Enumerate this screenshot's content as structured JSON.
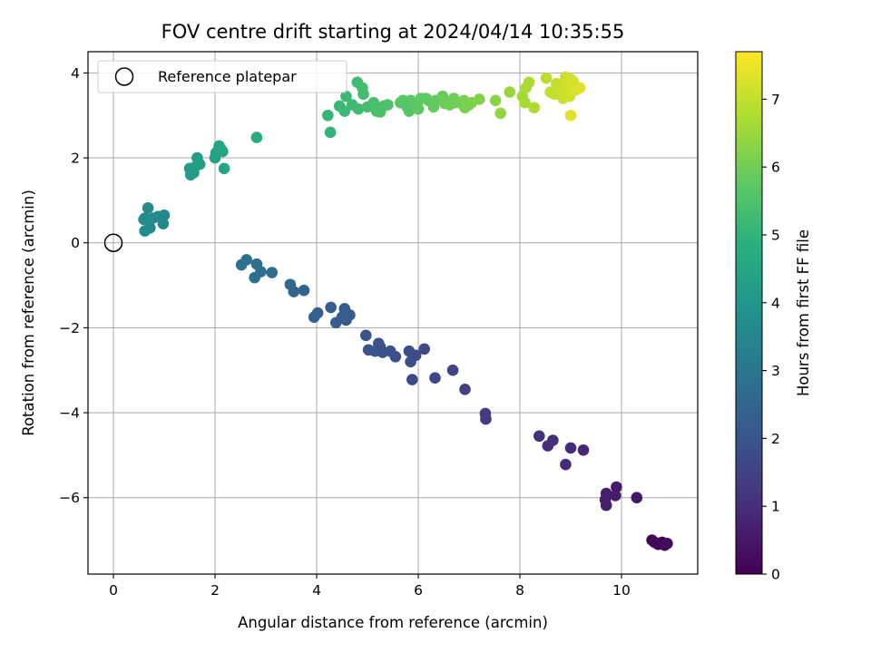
{
  "chart_data": {
    "type": "scatter",
    "title": "FOV centre drift starting at 2024/04/14 10:35:55",
    "xlabel": "Angular distance from reference (arcmin)",
    "ylabel": "Rotation from reference (arcmin)",
    "xlim": [
      -0.5,
      11.5
    ],
    "ylim": [
      -7.8,
      4.5
    ],
    "xticks": [
      0,
      2,
      4,
      6,
      8,
      10
    ],
    "yticks": [
      -6,
      -4,
      -2,
      0,
      2,
      4
    ],
    "xtick_labels": [
      "0",
      "2",
      "4",
      "6",
      "8",
      "10"
    ],
    "ytick_labels": [
      "−6",
      "−4",
      "−2",
      "0",
      "2",
      "4"
    ],
    "grid": true,
    "legend": {
      "position": "top-left",
      "label": "Reference platepar"
    },
    "reference_point": {
      "x": 0,
      "y": 0
    },
    "colorbar": {
      "label": "Hours from first FF file",
      "colormap": "viridis",
      "range": [
        0,
        7.7
      ],
      "ticks": [
        0,
        1,
        2,
        3,
        4,
        5,
        6,
        7
      ],
      "tick_labels": [
        "0",
        "1",
        "2",
        "3",
        "4",
        "5",
        "6",
        "7"
      ]
    },
    "points": [
      {
        "x": 10.6,
        "y": -7.0,
        "t": 0.05
      },
      {
        "x": 10.65,
        "y": -7.05,
        "t": 0.08
      },
      {
        "x": 10.72,
        "y": -7.1,
        "t": 0.1
      },
      {
        "x": 10.8,
        "y": -7.05,
        "t": 0.12
      },
      {
        "x": 10.85,
        "y": -7.12,
        "t": 0.15
      },
      {
        "x": 10.9,
        "y": -7.08,
        "t": 0.18
      },
      {
        "x": 10.3,
        "y": -6.0,
        "t": 0.45
      },
      {
        "x": 9.9,
        "y": -5.75,
        "t": 0.55
      },
      {
        "x": 9.88,
        "y": -5.95,
        "t": 0.58
      },
      {
        "x": 9.7,
        "y": -5.9,
        "t": 0.62
      },
      {
        "x": 9.68,
        "y": -6.05,
        "t": 0.65
      },
      {
        "x": 9.7,
        "y": -6.18,
        "t": 0.68
      },
      {
        "x": 9.25,
        "y": -4.88,
        "t": 0.85
      },
      {
        "x": 9.0,
        "y": -4.83,
        "t": 0.9
      },
      {
        "x": 8.9,
        "y": -5.22,
        "t": 0.93
      },
      {
        "x": 8.65,
        "y": -4.65,
        "t": 1.0
      },
      {
        "x": 8.55,
        "y": -4.78,
        "t": 1.05
      },
      {
        "x": 8.38,
        "y": -4.55,
        "t": 1.1
      },
      {
        "x": 7.32,
        "y": -4.02,
        "t": 1.3
      },
      {
        "x": 7.33,
        "y": -4.15,
        "t": 1.33
      },
      {
        "x": 6.92,
        "y": -3.45,
        "t": 1.45
      },
      {
        "x": 6.68,
        "y": -3.0,
        "t": 1.55
      },
      {
        "x": 6.33,
        "y": -3.18,
        "t": 1.65
      },
      {
        "x": 5.88,
        "y": -3.22,
        "t": 1.72
      },
      {
        "x": 6.12,
        "y": -2.5,
        "t": 1.75
      },
      {
        "x": 5.95,
        "y": -2.65,
        "t": 1.78
      },
      {
        "x": 5.85,
        "y": -2.8,
        "t": 1.8
      },
      {
        "x": 5.82,
        "y": -2.55,
        "t": 1.82
      },
      {
        "x": 5.55,
        "y": -2.68,
        "t": 1.85
      },
      {
        "x": 5.45,
        "y": -2.55,
        "t": 1.88
      },
      {
        "x": 5.3,
        "y": -2.58,
        "t": 1.9
      },
      {
        "x": 5.25,
        "y": -2.45,
        "t": 1.92
      },
      {
        "x": 5.22,
        "y": -2.37,
        "t": 1.94
      },
      {
        "x": 5.15,
        "y": -2.55,
        "t": 1.96
      },
      {
        "x": 5.02,
        "y": -2.52,
        "t": 1.98
      },
      {
        "x": 4.97,
        "y": -2.18,
        "t": 2.02
      },
      {
        "x": 4.65,
        "y": -1.7,
        "t": 2.15
      },
      {
        "x": 4.58,
        "y": -1.82,
        "t": 2.18
      },
      {
        "x": 4.55,
        "y": -1.55,
        "t": 2.2
      },
      {
        "x": 4.5,
        "y": -1.75,
        "t": 2.22
      },
      {
        "x": 4.38,
        "y": -1.88,
        "t": 2.25
      },
      {
        "x": 4.28,
        "y": -1.52,
        "t": 2.28
      },
      {
        "x": 4.02,
        "y": -1.65,
        "t": 2.35
      },
      {
        "x": 3.95,
        "y": -1.75,
        "t": 2.38
      },
      {
        "x": 3.75,
        "y": -1.12,
        "t": 2.5
      },
      {
        "x": 3.55,
        "y": -1.15,
        "t": 2.55
      },
      {
        "x": 3.48,
        "y": -0.98,
        "t": 2.58
      },
      {
        "x": 3.12,
        "y": -0.7,
        "t": 2.7
      },
      {
        "x": 2.9,
        "y": -0.68,
        "t": 2.75
      },
      {
        "x": 2.82,
        "y": -0.5,
        "t": 2.78
      },
      {
        "x": 2.78,
        "y": -0.82,
        "t": 2.8
      },
      {
        "x": 2.62,
        "y": -0.4,
        "t": 2.85
      },
      {
        "x": 2.52,
        "y": -0.52,
        "t": 2.88
      },
      {
        "x": 1.0,
        "y": 0.65,
        "t": 3.55
      },
      {
        "x": 0.98,
        "y": 0.45,
        "t": 3.58
      },
      {
        "x": 0.88,
        "y": 0.62,
        "t": 3.6
      },
      {
        "x": 0.78,
        "y": 0.58,
        "t": 3.62
      },
      {
        "x": 0.72,
        "y": 0.35,
        "t": 3.64
      },
      {
        "x": 0.68,
        "y": 0.82,
        "t": 3.66
      },
      {
        "x": 0.62,
        "y": 0.58,
        "t": 3.68
      },
      {
        "x": 0.62,
        "y": 0.28,
        "t": 3.7
      },
      {
        "x": 0.6,
        "y": 0.55,
        "t": 3.72
      },
      {
        "x": 1.5,
        "y": 1.75,
        "t": 4.2
      },
      {
        "x": 1.52,
        "y": 1.6,
        "t": 4.22
      },
      {
        "x": 1.58,
        "y": 1.65,
        "t": 4.24
      },
      {
        "x": 1.6,
        "y": 1.78,
        "t": 4.26
      },
      {
        "x": 1.65,
        "y": 2.0,
        "t": 4.28
      },
      {
        "x": 1.7,
        "y": 1.85,
        "t": 4.3
      },
      {
        "x": 2.0,
        "y": 2.0,
        "t": 4.4
      },
      {
        "x": 2.02,
        "y": 2.12,
        "t": 4.42
      },
      {
        "x": 2.08,
        "y": 2.28,
        "t": 4.44
      },
      {
        "x": 2.12,
        "y": 2.2,
        "t": 4.46
      },
      {
        "x": 2.15,
        "y": 2.15,
        "t": 4.48
      },
      {
        "x": 2.18,
        "y": 1.75,
        "t": 4.5
      },
      {
        "x": 2.82,
        "y": 2.48,
        "t": 4.7
      },
      {
        "x": 4.27,
        "y": 2.6,
        "t": 5.0
      },
      {
        "x": 4.22,
        "y": 3.0,
        "t": 5.05
      },
      {
        "x": 4.45,
        "y": 3.22,
        "t": 5.15
      },
      {
        "x": 4.55,
        "y": 3.1,
        "t": 5.18
      },
      {
        "x": 4.58,
        "y": 3.45,
        "t": 5.2
      },
      {
        "x": 4.7,
        "y": 3.25,
        "t": 5.22
      },
      {
        "x": 4.8,
        "y": 3.78,
        "t": 5.25
      },
      {
        "x": 4.82,
        "y": 3.15,
        "t": 5.28
      },
      {
        "x": 4.9,
        "y": 3.65,
        "t": 5.3
      },
      {
        "x": 4.92,
        "y": 3.5,
        "t": 5.32
      },
      {
        "x": 5.0,
        "y": 3.2,
        "t": 5.35
      },
      {
        "x": 5.1,
        "y": 3.25,
        "t": 5.38
      },
      {
        "x": 5.12,
        "y": 3.3,
        "t": 5.4
      },
      {
        "x": 5.18,
        "y": 3.1,
        "t": 5.42
      },
      {
        "x": 5.25,
        "y": 3.08,
        "t": 5.44
      },
      {
        "x": 5.32,
        "y": 3.22,
        "t": 5.46
      },
      {
        "x": 5.4,
        "y": 3.25,
        "t": 5.48
      },
      {
        "x": 5.65,
        "y": 3.3,
        "t": 5.6
      },
      {
        "x": 5.7,
        "y": 3.35,
        "t": 5.62
      },
      {
        "x": 5.78,
        "y": 3.2,
        "t": 5.64
      },
      {
        "x": 5.82,
        "y": 3.1,
        "t": 5.66
      },
      {
        "x": 5.85,
        "y": 3.35,
        "t": 5.68
      },
      {
        "x": 5.98,
        "y": 3.25,
        "t": 5.72
      },
      {
        "x": 6.0,
        "y": 3.15,
        "t": 5.74
      },
      {
        "x": 6.05,
        "y": 3.4,
        "t": 5.76
      },
      {
        "x": 6.15,
        "y": 3.4,
        "t": 5.78
      },
      {
        "x": 6.2,
        "y": 3.35,
        "t": 5.8
      },
      {
        "x": 6.3,
        "y": 3.2,
        "t": 5.82
      },
      {
        "x": 6.35,
        "y": 3.35,
        "t": 5.84
      },
      {
        "x": 6.48,
        "y": 3.45,
        "t": 5.9
      },
      {
        "x": 6.52,
        "y": 3.28,
        "t": 5.92
      },
      {
        "x": 6.58,
        "y": 3.32,
        "t": 5.94
      },
      {
        "x": 6.62,
        "y": 3.25,
        "t": 5.96
      },
      {
        "x": 6.7,
        "y": 3.4,
        "t": 5.98
      },
      {
        "x": 6.72,
        "y": 3.3,
        "t": 6.0
      },
      {
        "x": 6.85,
        "y": 3.28,
        "t": 6.05
      },
      {
        "x": 6.9,
        "y": 3.35,
        "t": 6.07
      },
      {
        "x": 6.92,
        "y": 3.18,
        "t": 6.09
      },
      {
        "x": 7.0,
        "y": 3.25,
        "t": 6.12
      },
      {
        "x": 7.05,
        "y": 3.3,
        "t": 6.14
      },
      {
        "x": 7.2,
        "y": 3.38,
        "t": 6.2
      },
      {
        "x": 7.52,
        "y": 3.35,
        "t": 6.35
      },
      {
        "x": 7.62,
        "y": 3.05,
        "t": 6.4
      },
      {
        "x": 7.8,
        "y": 3.55,
        "t": 6.5
      },
      {
        "x": 8.05,
        "y": 3.45,
        "t": 6.62
      },
      {
        "x": 8.1,
        "y": 3.3,
        "t": 6.65
      },
      {
        "x": 8.12,
        "y": 3.65,
        "t": 6.67
      },
      {
        "x": 8.18,
        "y": 3.78,
        "t": 6.7
      },
      {
        "x": 8.28,
        "y": 3.18,
        "t": 6.75
      },
      {
        "x": 8.52,
        "y": 3.88,
        "t": 6.9
      },
      {
        "x": 8.6,
        "y": 3.55,
        "t": 6.95
      },
      {
        "x": 8.68,
        "y": 3.5,
        "t": 6.98
      },
      {
        "x": 8.72,
        "y": 3.75,
        "t": 7.0
      },
      {
        "x": 8.82,
        "y": 3.55,
        "t": 7.05
      },
      {
        "x": 8.85,
        "y": 3.4,
        "t": 7.08
      },
      {
        "x": 8.9,
        "y": 3.9,
        "t": 7.1
      },
      {
        "x": 8.92,
        "y": 3.7,
        "t": 7.12
      },
      {
        "x": 8.95,
        "y": 3.55,
        "t": 7.14
      },
      {
        "x": 8.98,
        "y": 3.45,
        "t": 7.16
      },
      {
        "x": 9.0,
        "y": 3.85,
        "t": 7.18
      },
      {
        "x": 9.02,
        "y": 3.65,
        "t": 7.2
      },
      {
        "x": 9.05,
        "y": 3.8,
        "t": 7.22
      },
      {
        "x": 9.1,
        "y": 3.6,
        "t": 7.25
      },
      {
        "x": 9.18,
        "y": 3.65,
        "t": 7.3
      },
      {
        "x": 9.0,
        "y": 3.0,
        "t": 7.35
      }
    ]
  }
}
